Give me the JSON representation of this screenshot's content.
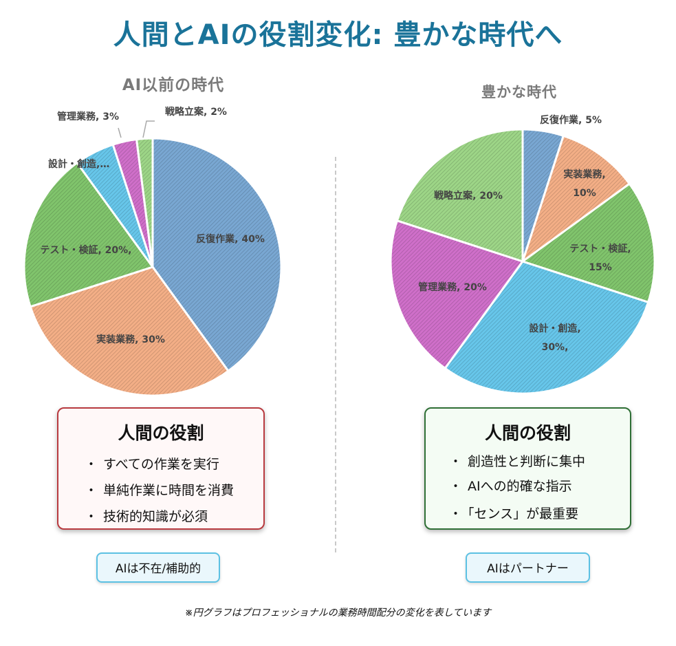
{
  "title": "人間とAIの役割変化: 豊かな時代へ",
  "chart_data": [
    {
      "type": "pie",
      "title": "AI以前の時代",
      "unit": "%",
      "slices": [
        {
          "label": "反復作業",
          "value": 40,
          "display": "反復作業, 40%",
          "color": "#79a7d2"
        },
        {
          "label": "実装業務",
          "value": 30,
          "display": "実装業務, 30%",
          "color": "#f3ae86"
        },
        {
          "label": "テスト・検証",
          "value": 20,
          "display": "テスト・検証, 20%,",
          "color": "#80c46c"
        },
        {
          "label": "設計・創造",
          "value": 5,
          "display": "設計・創造,…",
          "color": "#67c6ea"
        },
        {
          "label": "管理業務",
          "value": 3,
          "display": "管理業務, 3%",
          "color": "#cf6fc9"
        },
        {
          "label": "戦略立案",
          "value": 2,
          "display": "戦略立案, 2%",
          "color": "#9dd587"
        }
      ]
    },
    {
      "type": "pie",
      "title": "豊かな時代",
      "unit": "%",
      "slices": [
        {
          "label": "反復作業",
          "value": 5,
          "display": "反復作業, 5%",
          "color": "#79a7d2"
        },
        {
          "label": "実装業務",
          "value": 10,
          "display": "実装業務, 10%",
          "color": "#f3ae86"
        },
        {
          "label": "テスト・検証",
          "value": 15,
          "display": "テスト・検証, 15%",
          "color": "#80c46c"
        },
        {
          "label": "設計・創造",
          "value": 30,
          "display": "設計・創造, 30%,",
          "color": "#67c6ea"
        },
        {
          "label": "管理業務",
          "value": 20,
          "display": "管理業務, 20%",
          "color": "#cf6fc9"
        },
        {
          "label": "戦略立案",
          "value": 20,
          "display": "戦略立案, 20%",
          "color": "#9dd587"
        }
      ]
    }
  ],
  "left_panel": {
    "heading": "人間の役割",
    "items": [
      "すべての作業を実行",
      "単純作業に時間を消費",
      "技術的知識が必須"
    ],
    "tag": "AIは不在/補助的"
  },
  "right_panel": {
    "heading": "人間の役割",
    "items": [
      "創造性と判断に集中",
      "AIへの的確な指示",
      "「センス」が最重要"
    ],
    "tag": "AIはパートナー"
  },
  "bullet": "・",
  "footnote": "※円グラフはプロフェッショナルの業務時間配分の変化を表しています"
}
